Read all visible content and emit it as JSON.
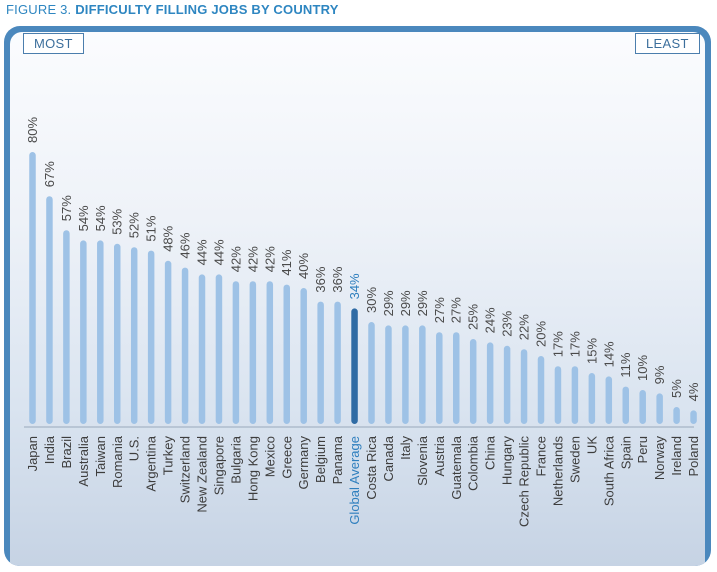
{
  "title": {
    "prefix": "FIGURE 3.",
    "main": "DIFFICULTY FILLING JOBS BY COUNTRY"
  },
  "labels": {
    "most": "MOST",
    "least": "LEAST"
  },
  "colors": {
    "bar": "#9ec2e6",
    "highlight_bar": "#2f6ba4",
    "highlight_text": "#2f7fbe",
    "frame": "#4b88bd"
  },
  "chart_data": {
    "type": "bar",
    "orientation": "vertical",
    "unit": "%",
    "ylim": [
      0,
      80
    ],
    "grid": false,
    "highlight": "Global Average",
    "categories": [
      "Japan",
      "India",
      "Brazil",
      "Australia",
      "Taiwan",
      "Romania",
      "U.S.",
      "Argentina",
      "Turkey",
      "Switzerland",
      "New Zealand",
      "Singapore",
      "Bulgaria",
      "Hong Kong",
      "Mexico",
      "Greece",
      "Germany",
      "Belgium",
      "Panama",
      "Global Average",
      "Costa Rica",
      "Canada",
      "Italy",
      "Slovenia",
      "Austria",
      "Guatemala",
      "Colombia",
      "China",
      "Hungary",
      "Czech Republic",
      "France",
      "Netherlands",
      "Sweden",
      "UK",
      "South Africa",
      "Spain",
      "Peru",
      "Norway",
      "Ireland",
      "Poland"
    ],
    "values": [
      80,
      67,
      57,
      54,
      54,
      53,
      52,
      51,
      48,
      46,
      44,
      44,
      42,
      42,
      42,
      41,
      40,
      36,
      36,
      34,
      30,
      29,
      29,
      29,
      27,
      27,
      25,
      24,
      23,
      22,
      20,
      17,
      17,
      15,
      14,
      11,
      10,
      9,
      5,
      4
    ],
    "value_labels": [
      "80%",
      "67%",
      "57%",
      "54%",
      "54%",
      "53%",
      "52%",
      "51%",
      "48%",
      "46%",
      "44%",
      "44%",
      "42%",
      "42%",
      "42%",
      "41%",
      "40%",
      "36%",
      "36%",
      "34%",
      "30%",
      "29%",
      "29%",
      "29%",
      "27%",
      "27%",
      "25%",
      "24%",
      "23%",
      "22%",
      "20%",
      "17%",
      "17%",
      "15%",
      "14%",
      "11%",
      "10%",
      "9%",
      "5%",
      "4%"
    ]
  }
}
